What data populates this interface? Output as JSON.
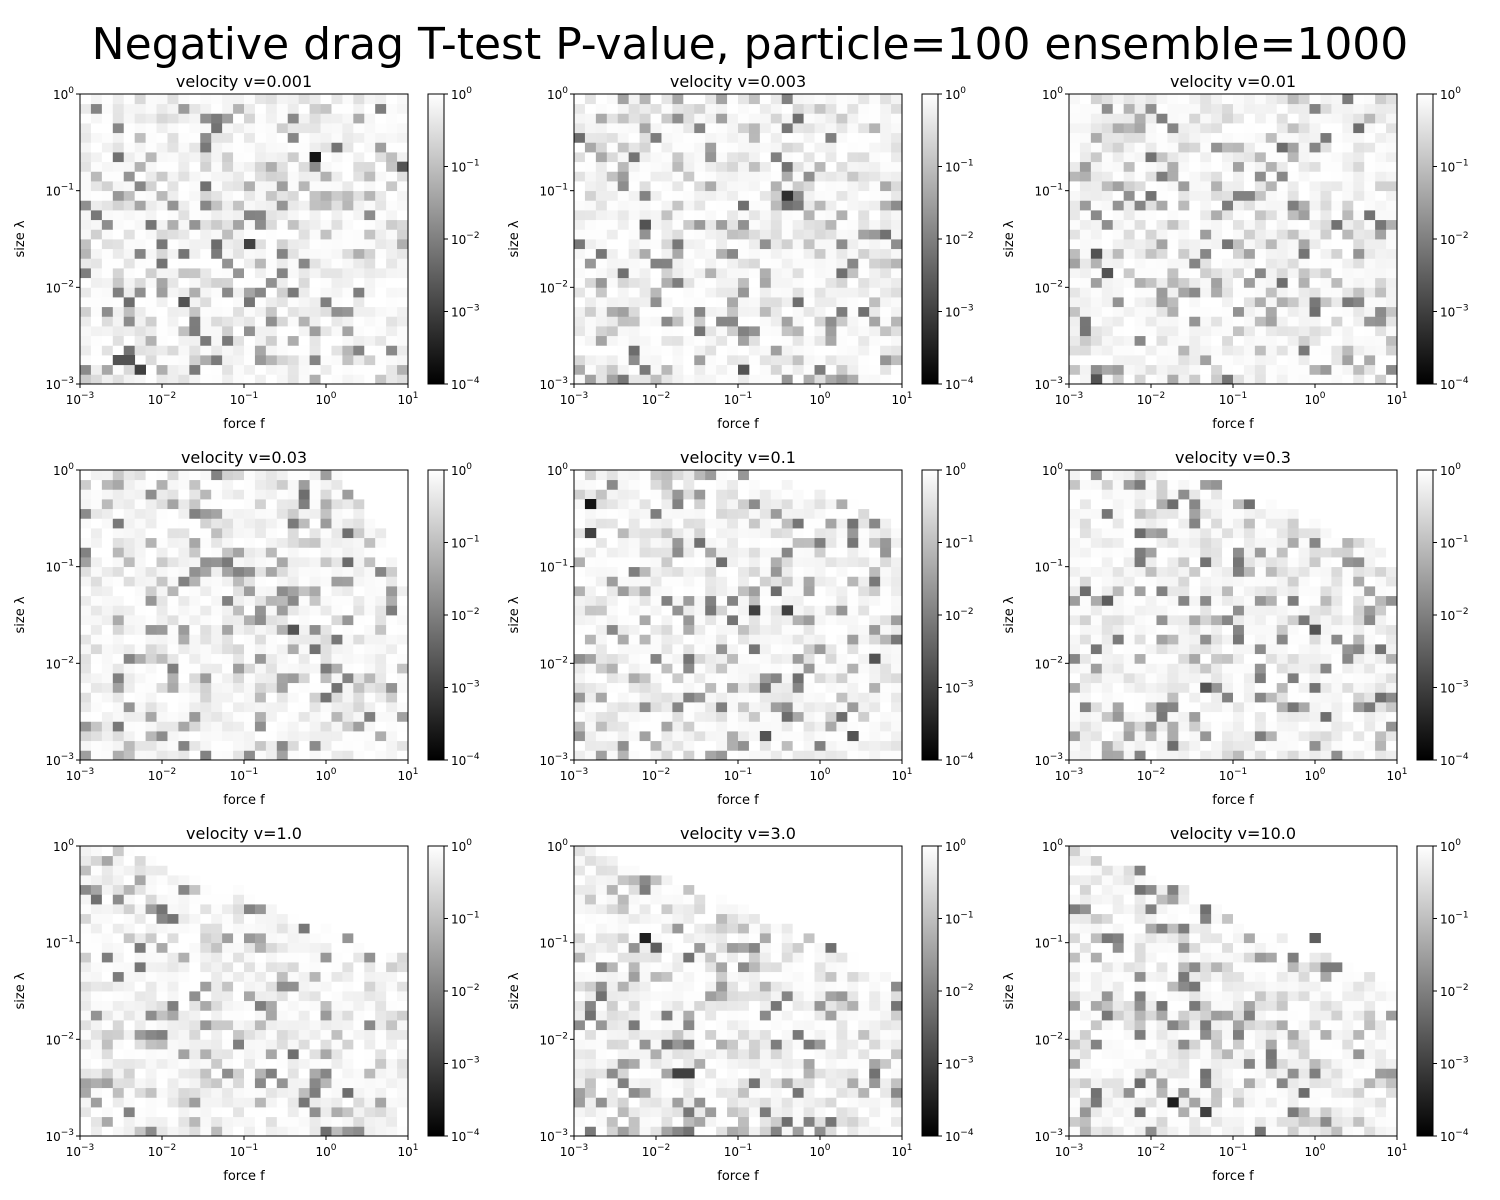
{
  "figure": {
    "title": "Negative drag T-test P-value, particle=100 ensemble=1000"
  },
  "chart_data": [
    {
      "type": "heatmap",
      "title": "velocity v=0.001",
      "xlabel": "force f",
      "ylabel": "size λ",
      "xscale": "log",
      "yscale": "log",
      "xlim": [
        0.001,
        10
      ],
      "ylim": [
        0.001,
        1
      ],
      "x_ticks": [
        "10^-3",
        "10^-2",
        "10^-1",
        "10^0",
        "10^1"
      ],
      "y_ticks": [
        "10^-3",
        "10^-2",
        "10^-1",
        "10^0"
      ],
      "colorbar": {
        "scale": "log",
        "range": [
          0.0001,
          1
        ],
        "ticks": [
          "10^-4",
          "10^-3",
          "10^-2",
          "10^-1",
          "10^0"
        ],
        "colormap": "gray"
      },
      "grid": [
        30,
        30
      ],
      "velocity": 0.001,
      "null_region": "none",
      "dark_cells": [
        {
          "f": 0.8,
          "lambda": 0.25,
          "p": 0.0002
        },
        {
          "f": 0.0033,
          "lambda": 0.0016,
          "p": 0.002
        },
        {
          "f": 0.0045,
          "lambda": 0.0016,
          "p": 0.002
        },
        {
          "f": 0.0055,
          "lambda": 0.0013,
          "p": 0.001
        },
        {
          "f": 0.018,
          "lambda": 0.007,
          "p": 0.002
        },
        {
          "f": 0.12,
          "lambda": 0.03,
          "p": 0.001
        },
        {
          "f": 7.5,
          "lambda": 0.17,
          "p": 0.002
        }
      ],
      "grid_on": false
    },
    {
      "type": "heatmap",
      "title": "velocity v=0.003",
      "xlabel": "force f",
      "ylabel": "size λ",
      "xscale": "log",
      "yscale": "log",
      "xlim": [
        0.001,
        10
      ],
      "ylim": [
        0.001,
        1
      ],
      "x_ticks": [
        "10^-3",
        "10^-2",
        "10^-1",
        "10^0",
        "10^1"
      ],
      "y_ticks": [
        "10^-3",
        "10^-2",
        "10^-1",
        "10^0"
      ],
      "colorbar": {
        "scale": "log",
        "range": [
          0.0001,
          1
        ],
        "ticks": [
          "10^-4",
          "10^-3",
          "10^-2",
          "10^-1",
          "10^0"
        ],
        "colormap": "gray"
      },
      "grid": [
        30,
        30
      ],
      "velocity": 0.003,
      "null_region": "none",
      "dark_cells": [
        {
          "f": 0.4,
          "lambda": 0.08,
          "p": 0.0005
        },
        {
          "f": 0.0075,
          "lambda": 0.04,
          "p": 0.002
        },
        {
          "f": 0.1,
          "lambda": 0.0015,
          "p": 0.002
        }
      ],
      "grid_on": false
    },
    {
      "type": "heatmap",
      "title": "velocity v=0.01",
      "xlabel": "force f",
      "ylabel": "size λ",
      "xscale": "log",
      "yscale": "log",
      "xlim": [
        0.001,
        10
      ],
      "ylim": [
        0.001,
        1
      ],
      "x_ticks": [
        "10^-3",
        "10^-2",
        "10^-1",
        "10^0",
        "10^1"
      ],
      "y_ticks": [
        "10^-3",
        "10^-2",
        "10^-1",
        "10^0"
      ],
      "colorbar": {
        "scale": "log",
        "range": [
          0.0001,
          1
        ],
        "ticks": [
          "10^-4",
          "10^-3",
          "10^-2",
          "10^-1",
          "10^0"
        ],
        "colormap": "gray"
      },
      "grid": [
        30,
        30
      ],
      "velocity": 0.01,
      "null_region": "none",
      "dark_cells": [
        {
          "f": 0.002,
          "lambda": 0.025,
          "p": 0.002
        },
        {
          "f": 0.0033,
          "lambda": 0.013,
          "p": 0.002
        },
        {
          "f": 0.0023,
          "lambda": 0.0012,
          "p": 0.002
        }
      ],
      "grid_on": false
    },
    {
      "type": "heatmap",
      "title": "velocity v=0.03",
      "xlabel": "force f",
      "ylabel": "size λ",
      "xscale": "log",
      "yscale": "log",
      "xlim": [
        0.001,
        10
      ],
      "ylim": [
        0.001,
        1
      ],
      "x_ticks": [
        "10^-3",
        "10^-2",
        "10^-1",
        "10^0",
        "10^1"
      ],
      "y_ticks": [
        "10^-3",
        "10^-2",
        "10^-1",
        "10^0"
      ],
      "colorbar": {
        "scale": "log",
        "range": [
          0.0001,
          1
        ],
        "ticks": [
          "10^-4",
          "10^-3",
          "10^-2",
          "10^-1",
          "10^0"
        ],
        "colormap": "gray"
      },
      "grid": [
        30,
        30
      ],
      "velocity": 0.03,
      "null_region": "upper-right",
      "null_start": [
        0.8,
        0.6
      ],
      "dark_cells": [
        {
          "f": 0.4,
          "lambda": 0.025,
          "p": 0.002
        }
      ],
      "grid_on": false
    },
    {
      "type": "heatmap",
      "title": "velocity v=0.1",
      "xlabel": "force f",
      "ylabel": "size λ",
      "xscale": "log",
      "yscale": "log",
      "xlim": [
        0.001,
        10
      ],
      "ylim": [
        0.001,
        1
      ],
      "x_ticks": [
        "10^-3",
        "10^-2",
        "10^-1",
        "10^0",
        "10^1"
      ],
      "y_ticks": [
        "10^-3",
        "10^-2",
        "10^-1",
        "10^0"
      ],
      "colorbar": {
        "scale": "log",
        "range": [
          0.0001,
          1
        ],
        "ticks": [
          "10^-4",
          "10^-3",
          "10^-2",
          "10^-1",
          "10^0"
        ],
        "colormap": "gray"
      },
      "grid": [
        30,
        30
      ],
      "velocity": 0.1,
      "null_region": "upper-right",
      "null_start": [
        0.45,
        0.82
      ],
      "dark_cells": [
        {
          "f": 0.0018,
          "lambda": 0.5,
          "p": 0.0002
        },
        {
          "f": 0.0015,
          "lambda": 0.2,
          "p": 0.001
        },
        {
          "f": 0.15,
          "lambda": 0.033,
          "p": 0.001
        },
        {
          "f": 0.4,
          "lambda": 0.033,
          "p": 0.001
        },
        {
          "f": 0.2,
          "lambda": 0.0016,
          "p": 0.002
        },
        {
          "f": 2.5,
          "lambda": 0.0016,
          "p": 0.002
        },
        {
          "f": 4.5,
          "lambda": 0.01,
          "p": 0.002
        }
      ],
      "grid_on": false
    },
    {
      "type": "heatmap",
      "title": "velocity v=0.3",
      "xlabel": "force f",
      "ylabel": "size λ",
      "xscale": "log",
      "yscale": "log",
      "xlim": [
        0.001,
        10
      ],
      "ylim": [
        0.001,
        1
      ],
      "x_ticks": [
        "10^-3",
        "10^-2",
        "10^-1",
        "10^0",
        "10^1"
      ],
      "y_ticks": [
        "10^-3",
        "10^-2",
        "10^-1",
        "10^0"
      ],
      "colorbar": {
        "scale": "log",
        "range": [
          0.0001,
          1
        ],
        "ticks": [
          "10^-4",
          "10^-3",
          "10^-2",
          "10^-1",
          "10^0"
        ],
        "colormap": "gray"
      },
      "grid": [
        30,
        30
      ],
      "velocity": 0.3,
      "null_region": "upper-right",
      "null_start": [
        0.3,
        0.72
      ],
      "dark_cells": [
        {
          "f": 0.05,
          "lambda": 0.006,
          "p": 0.002
        },
        {
          "f": 1.0,
          "lambda": 0.025,
          "p": 0.002
        },
        {
          "f": 0.0033,
          "lambda": 0.04,
          "p": 0.003
        }
      ],
      "grid_on": false
    },
    {
      "type": "heatmap",
      "title": "velocity v=1.0",
      "xlabel": "force f",
      "ylabel": "size λ",
      "xscale": "log",
      "yscale": "log",
      "xlim": [
        0.001,
        10
      ],
      "ylim": [
        0.001,
        1
      ],
      "x_ticks": [
        "10^-3",
        "10^-2",
        "10^-1",
        "10^0",
        "10^1"
      ],
      "y_ticks": [
        "10^-3",
        "10^-2",
        "10^-1",
        "10^0"
      ],
      "colorbar": {
        "scale": "log",
        "range": [
          0.0001,
          1
        ],
        "ticks": [
          "10^-4",
          "10^-3",
          "10^-2",
          "10^-1",
          "10^0"
        ],
        "colormap": "gray"
      },
      "grid": [
        30,
        30
      ],
      "velocity": 1.0,
      "null_region": "upper-right",
      "null_start": [
        0.12,
        0.6
      ],
      "dark_cells": [],
      "grid_on": false
    },
    {
      "type": "heatmap",
      "title": "velocity v=3.0",
      "xlabel": "force f",
      "ylabel": "size λ",
      "xscale": "log",
      "yscale": "log",
      "xlim": [
        0.001,
        10
      ],
      "ylim": [
        0.001,
        1
      ],
      "x_ticks": [
        "10^-3",
        "10^-2",
        "10^-1",
        "10^0",
        "10^1"
      ],
      "y_ticks": [
        "10^-3",
        "10^-2",
        "10^-1",
        "10^0"
      ],
      "colorbar": {
        "scale": "log",
        "range": [
          0.0001,
          1
        ],
        "ticks": [
          "10^-4",
          "10^-3",
          "10^-2",
          "10^-1",
          "10^0"
        ],
        "colormap": "gray"
      },
      "grid": [
        30,
        30
      ],
      "velocity": 3.0,
      "null_region": "upper-right",
      "null_start": [
        0.06,
        0.55
      ],
      "dark_cells": [
        {
          "f": 0.0065,
          "lambda": 0.1,
          "p": 0.0003
        },
        {
          "f": 0.02,
          "lambda": 0.004,
          "p": 0.001
        },
        {
          "f": 0.025,
          "lambda": 0.004,
          "p": 0.001
        },
        {
          "f": 0.01,
          "lambda": 0.08,
          "p": 0.003
        }
      ],
      "grid_on": false
    },
    {
      "type": "heatmap",
      "title": "velocity v=10.0",
      "xlabel": "force f",
      "ylabel": "size λ",
      "xscale": "log",
      "yscale": "log",
      "xlim": [
        0.001,
        10
      ],
      "ylim": [
        0.001,
        1
      ],
      "x_ticks": [
        "10^-3",
        "10^-2",
        "10^-1",
        "10^0",
        "10^1"
      ],
      "y_ticks": [
        "10^-3",
        "10^-2",
        "10^-1",
        "10^0"
      ],
      "colorbar": {
        "scale": "log",
        "range": [
          0.0001,
          1
        ],
        "ticks": [
          "10^-4",
          "10^-3",
          "10^-2",
          "10^-1",
          "10^0"
        ],
        "colormap": "gray"
      },
      "grid": [
        30,
        30
      ],
      "velocity": 10.0,
      "null_region": "upper-right",
      "null_start": [
        0.05,
        0.5
      ],
      "dark_cells": [
        {
          "f": 0.016,
          "lambda": 0.0025,
          "p": 0.0003
        },
        {
          "f": 0.05,
          "lambda": 0.0016,
          "p": 0.001
        },
        {
          "f": 1.0,
          "lambda": 0.1,
          "p": 0.003
        }
      ],
      "grid_on": false
    }
  ]
}
